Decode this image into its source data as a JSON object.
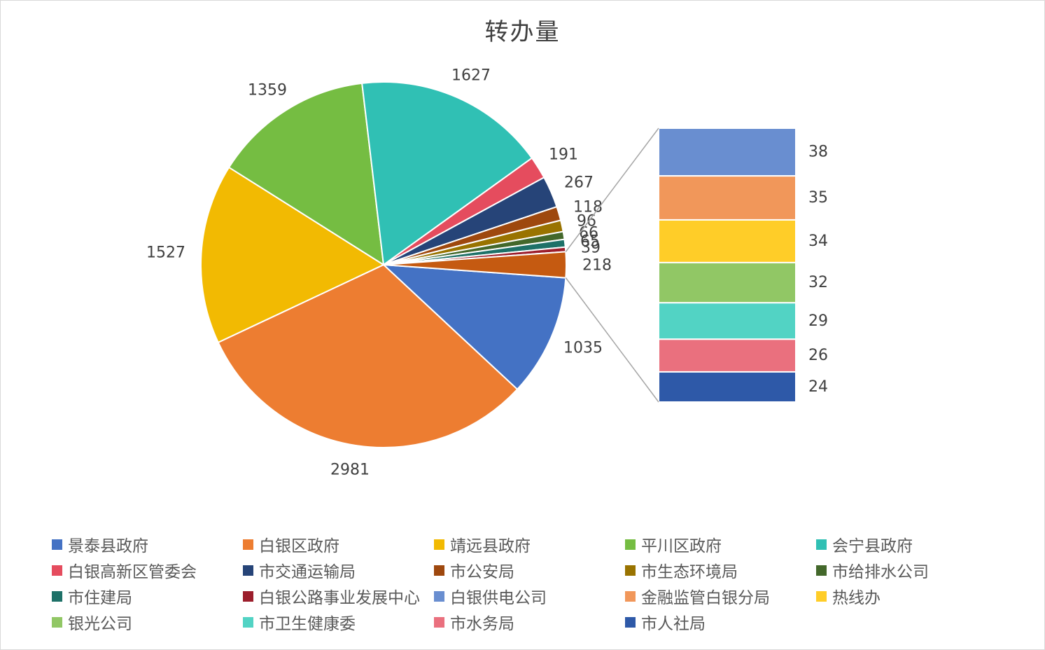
{
  "chart_data": {
    "type": "pie",
    "subtype": "bar-of-pie",
    "title": "转办量",
    "slices": [
      {
        "name": "景泰县政府",
        "value": 1035,
        "color": "#4472C4"
      },
      {
        "name": "白银区政府",
        "value": 2981,
        "color": "#ED7D31"
      },
      {
        "name": "靖远县政府",
        "value": 1527,
        "color": "#F2BA02"
      },
      {
        "name": "平川区政府",
        "value": 1359,
        "color": "#75BD42"
      },
      {
        "name": "会宁县政府",
        "value": 1627,
        "color": "#30C0B4"
      },
      {
        "name": "白银高新区管委会",
        "value": 191,
        "color": "#E54C5E"
      },
      {
        "name": "市交通运输局",
        "value": 267,
        "color": "#264478"
      },
      {
        "name": "市公安局",
        "value": 118,
        "color": "#9E480E"
      },
      {
        "name": "市生态环境局",
        "value": 96,
        "color": "#997300"
      },
      {
        "name": "市给排水公司",
        "value": 66,
        "color": "#43682B"
      },
      {
        "name": "市住建局",
        "value": 65,
        "color": "#1E7168"
      },
      {
        "name": "白银公路事业发展中心",
        "value": 39,
        "color": "#9C1E2C"
      },
      {
        "name": "白银供电公司",
        "value": 38,
        "color": "#698ED0"
      },
      {
        "name": "金融监管白银分局",
        "value": 35,
        "color": "#F1975A"
      },
      {
        "name": "热线办",
        "value": 34,
        "color": "#FFCD28"
      },
      {
        "name": "银光公司",
        "value": 32,
        "color": "#91C765"
      },
      {
        "name": "市卫生健康委",
        "value": 29,
        "color": "#52D3C4"
      },
      {
        "name": "市水务局",
        "value": 26,
        "color": "#EA707E"
      },
      {
        "name": "市人社局",
        "value": 24,
        "color": "#2E59A8"
      }
    ],
    "other_label": "218",
    "legend_position": "bottom"
  }
}
